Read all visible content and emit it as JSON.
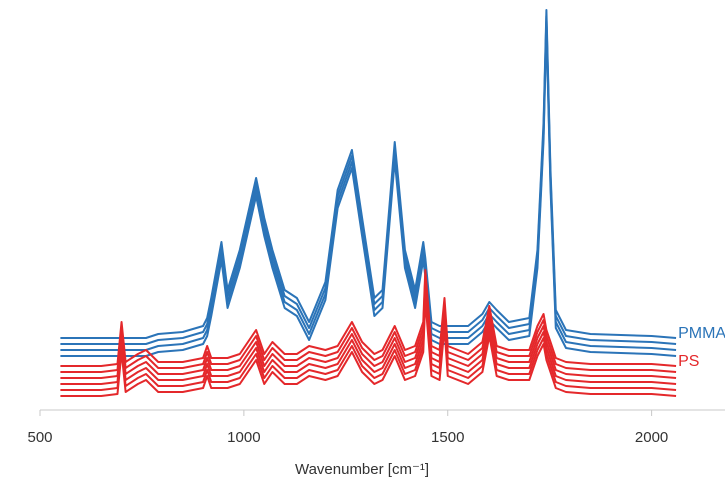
{
  "chart_data": {
    "type": "line",
    "x_label": "Wavenumber [cm⁻¹]",
    "xlim": [
      500,
      2180
    ],
    "xticks": [
      500,
      1000,
      1500,
      2000
    ],
    "ylim": [
      0,
      100
    ],
    "x": [
      550,
      650,
      690,
      700,
      710,
      740,
      760,
      790,
      850,
      900,
      910,
      920,
      945,
      960,
      990,
      1030,
      1050,
      1070,
      1100,
      1130,
      1160,
      1200,
      1230,
      1265,
      1290,
      1320,
      1340,
      1370,
      1395,
      1420,
      1440,
      1445,
      1460,
      1480,
      1492,
      1500,
      1550,
      1585,
      1602,
      1620,
      1650,
      1700,
      1720,
      1735,
      1742,
      1752,
      1765,
      1790,
      1850,
      2000,
      2060
    ],
    "series": [
      {
        "name": "PMMA",
        "color": "#2b74b8",
        "values": [
          18,
          18,
          18,
          18,
          18,
          18,
          18,
          19,
          19.5,
          21,
          23,
          28,
          42,
          30,
          40,
          58,
          48,
          40,
          30,
          28,
          22,
          32,
          55,
          65,
          48,
          28,
          30,
          67,
          40,
          30,
          42,
          38,
          22,
          21,
          21,
          21,
          21,
          24,
          27,
          25,
          22,
          23,
          40,
          72,
          100,
          60,
          25,
          20,
          19,
          18.5,
          18
        ]
      },
      {
        "color": "#2b74b8",
        "values": [
          16.5,
          16.5,
          16.5,
          16.5,
          16.5,
          16.5,
          16.5,
          17.5,
          18,
          19.5,
          21.5,
          26.5,
          40.5,
          28.5,
          38.5,
          56.5,
          46.5,
          38.5,
          28.5,
          26.5,
          20.5,
          30.5,
          53.5,
          63.5,
          46.5,
          26.5,
          28.5,
          65.5,
          38.5,
          28.5,
          40.5,
          36.5,
          20.5,
          19.5,
          19.5,
          19.5,
          19.5,
          22.5,
          25.5,
          23.5,
          20.5,
          21.5,
          38.5,
          70.5,
          98.5,
          58.5,
          23.5,
          18.5,
          17.5,
          17,
          16.5
        ]
      },
      {
        "color": "#2b74b8",
        "values": [
          15,
          15,
          15,
          15,
          15,
          15,
          15,
          16,
          16.5,
          18,
          20,
          25,
          39,
          27,
          37,
          55,
          45,
          37,
          27,
          25,
          19,
          29,
          52,
          62,
          45,
          25,
          27,
          64,
          37,
          27,
          39,
          35,
          19,
          18,
          18,
          18,
          18,
          21,
          24,
          22,
          19,
          20,
          37,
          69,
          97,
          57,
          22,
          17,
          16,
          15.5,
          15
        ]
      },
      {
        "color": "#2b74b8",
        "values": [
          13.5,
          13.5,
          13.5,
          13.5,
          13.5,
          13.5,
          13.5,
          14.5,
          15,
          16.5,
          18.5,
          23.5,
          37.5,
          25.5,
          35.5,
          53.5,
          43.5,
          35.5,
          25.5,
          23.5,
          17.5,
          27.5,
          50.5,
          60.5,
          43.5,
          23.5,
          25.5,
          62.5,
          35.5,
          25.5,
          37.5,
          33.5,
          17.5,
          16.5,
          16.5,
          16.5,
          16.5,
          19.5,
          22.5,
          20.5,
          17.5,
          18.5,
          35.5,
          67.5,
          95.5,
          55.5,
          20.5,
          15.5,
          14.5,
          14,
          13.5
        ]
      },
      {
        "name": "PS",
        "color": "#e4282b",
        "values": [
          11,
          11,
          11.5,
          22,
          12,
          14,
          15,
          12,
          12,
          13,
          16,
          13,
          13,
          13,
          14,
          20,
          14,
          17,
          14,
          14,
          16,
          15,
          16,
          22,
          17,
          14,
          15,
          21,
          15,
          16,
          22,
          35,
          16,
          15,
          28,
          16,
          14,
          17,
          26,
          16,
          15,
          15,
          21,
          24,
          20,
          17,
          13,
          12,
          11.5,
          11.5,
          11
        ]
      },
      {
        "color": "#e4282b",
        "values": [
          9.5,
          9.5,
          10,
          20.5,
          10.5,
          12.5,
          13.5,
          10.5,
          10.5,
          11.5,
          14.5,
          11.5,
          11.5,
          11.5,
          12.5,
          18.5,
          12.5,
          15.5,
          12.5,
          12.5,
          14.5,
          13.5,
          14.5,
          20.5,
          15.5,
          12.5,
          13.5,
          19.5,
          13.5,
          14.5,
          20.5,
          33.5,
          14.5,
          13.5,
          26.5,
          14.5,
          12.5,
          15.5,
          24.5,
          14.5,
          13.5,
          13.5,
          19.5,
          22.5,
          18.5,
          15.5,
          11.5,
          10.5,
          10,
          10,
          9.5
        ]
      },
      {
        "color": "#e4282b",
        "values": [
          8,
          8,
          8.5,
          19,
          9,
          11,
          12,
          9,
          9,
          10,
          13,
          10,
          10,
          10,
          11,
          17,
          11,
          14,
          11,
          11,
          13,
          12,
          13,
          19,
          14,
          11,
          12,
          18,
          12,
          13,
          19,
          32,
          13,
          12,
          25,
          13,
          11,
          14,
          23,
          13,
          12,
          12,
          18,
          21,
          17,
          14,
          10,
          9,
          8.5,
          8.5,
          8
        ]
      },
      {
        "color": "#e4282b",
        "values": [
          6.5,
          6.5,
          7,
          17.5,
          7.5,
          9.5,
          10.5,
          7.5,
          7.5,
          8.5,
          11.5,
          8.5,
          8.5,
          8.5,
          9.5,
          15.5,
          9.5,
          12.5,
          9.5,
          9.5,
          11.5,
          10.5,
          11.5,
          17.5,
          12.5,
          9.5,
          10.5,
          16.5,
          10.5,
          11.5,
          17.5,
          30.5,
          11.5,
          10.5,
          23.5,
          11.5,
          9.5,
          12.5,
          21.5,
          11.5,
          10.5,
          10.5,
          16.5,
          19.5,
          15.5,
          12.5,
          8.5,
          7.5,
          7,
          7,
          6.5
        ]
      },
      {
        "color": "#e4282b",
        "values": [
          5,
          5,
          5.5,
          16,
          6,
          8,
          9,
          6,
          6,
          7,
          10,
          7,
          7,
          7,
          8,
          14,
          8,
          11,
          8,
          8,
          10,
          9,
          10,
          16,
          11,
          8,
          9,
          15,
          9,
          10,
          16,
          29,
          10,
          9,
          22,
          10,
          8,
          11,
          20,
          10,
          9,
          9,
          15,
          18,
          14,
          11,
          7,
          6,
          5.5,
          5.5,
          5
        ]
      },
      {
        "color": "#e4282b",
        "values": [
          3.5,
          3.5,
          4,
          14.5,
          4.5,
          6.5,
          7.5,
          4.5,
          4.5,
          5.5,
          8.5,
          5.5,
          5.5,
          5.5,
          6.5,
          12.5,
          6.5,
          9.5,
          6.5,
          6.5,
          8.5,
          7.5,
          8.5,
          14.5,
          9.5,
          6.5,
          7.5,
          13.5,
          7.5,
          8.5,
          14.5,
          27.5,
          8.5,
          7.5,
          20.5,
          8.5,
          6.5,
          9.5,
          18.5,
          8.5,
          7.5,
          7.5,
          13.5,
          16.5,
          12.5,
          9.5,
          5.5,
          4.5,
          4,
          4,
          3.5
        ]
      }
    ]
  }
}
